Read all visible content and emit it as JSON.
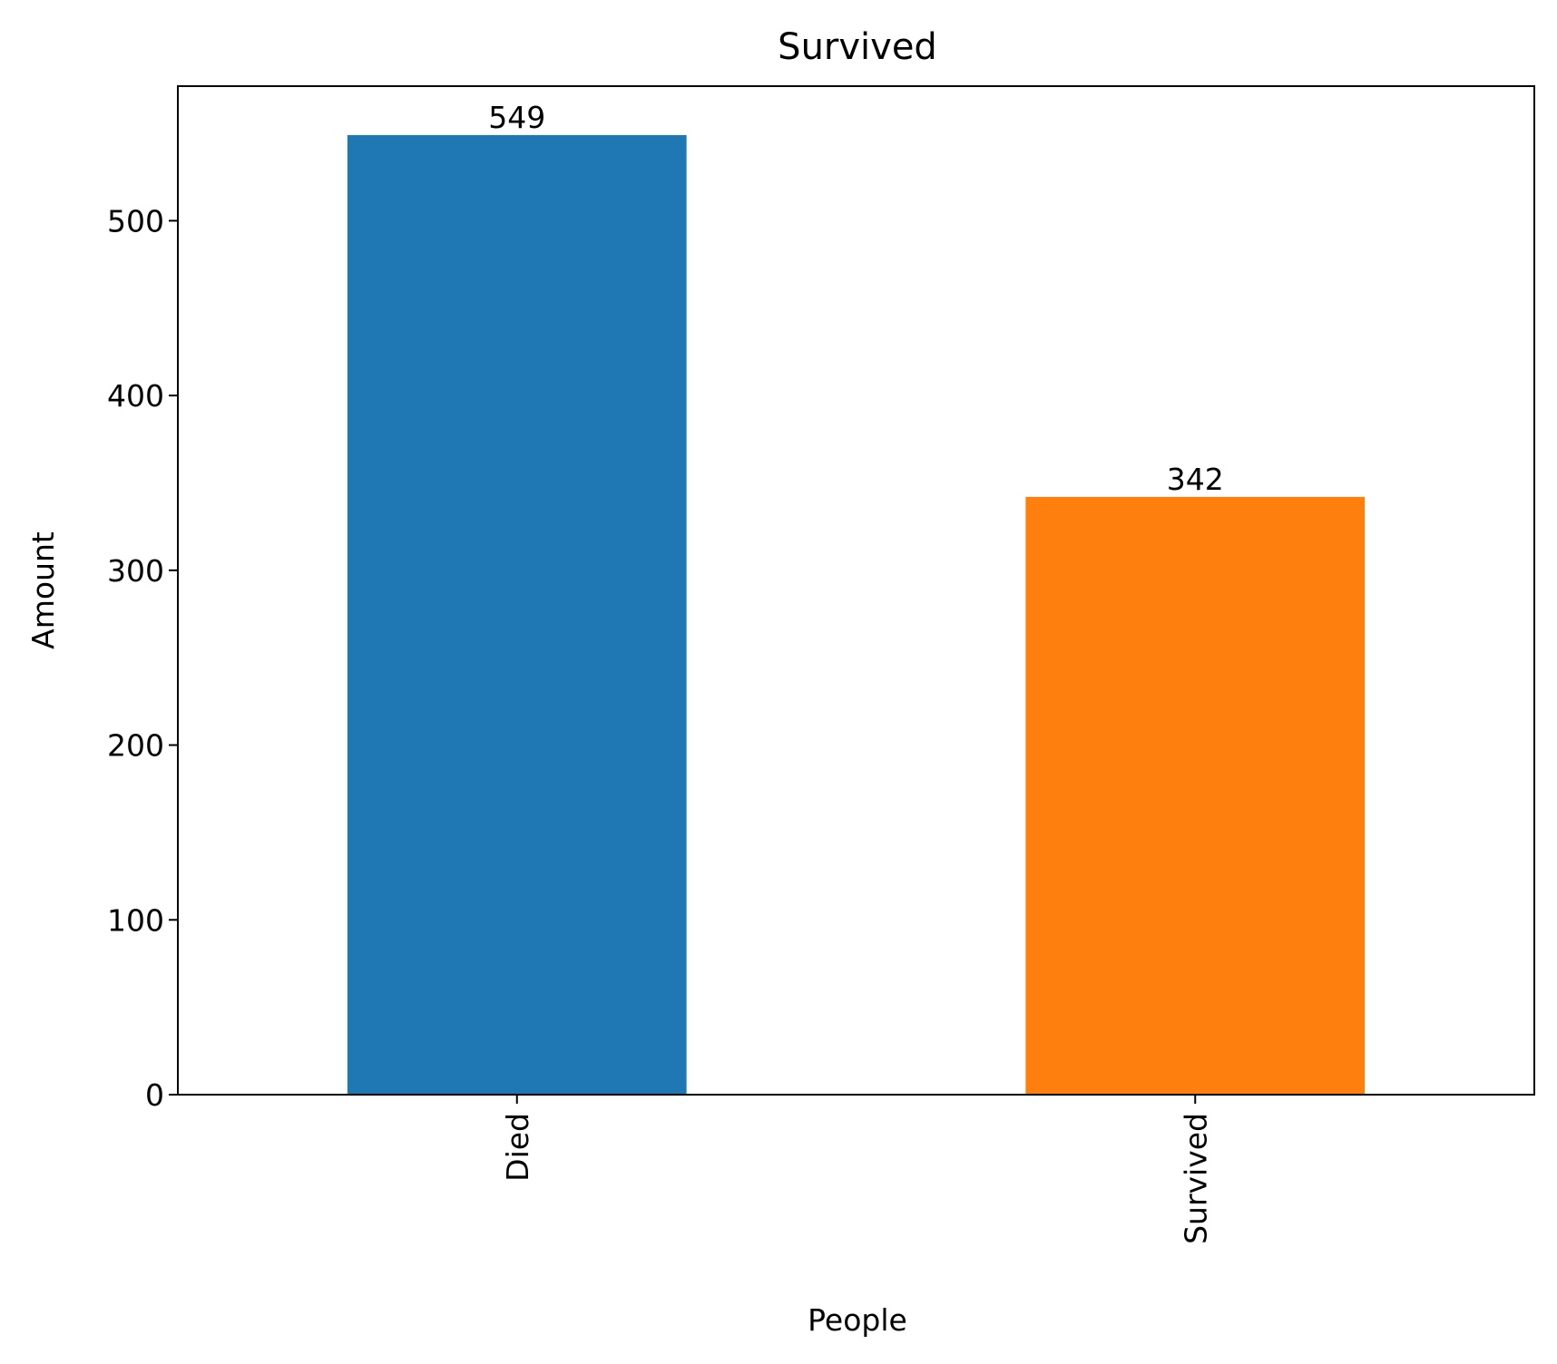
{
  "chart_data": {
    "type": "bar",
    "title": "Survived",
    "xlabel": "People",
    "ylabel": "Amount",
    "categories": [
      "Died",
      "Survived"
    ],
    "values": [
      549,
      342
    ],
    "data_labels": [
      "549",
      "342"
    ],
    "bar_colors": [
      "#1f77b4",
      "#ff7f0e"
    ],
    "ylim": [
      0,
      577
    ],
    "yticks": [
      0,
      100,
      200,
      300,
      400,
      500
    ],
    "ytick_labels": [
      "0",
      "100",
      "200",
      "300",
      "400",
      "500"
    ],
    "grid": false,
    "legend": "none"
  }
}
